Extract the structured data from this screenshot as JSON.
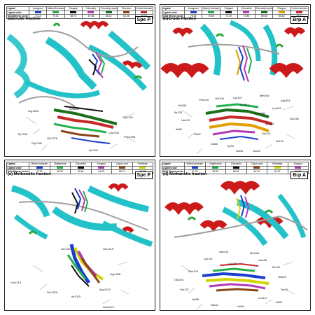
{
  "colors": {
    "helix": "#cc1a1a",
    "sheet": "#23c2c9",
    "coil": "#9e9e9e",
    "turn": "#2aa83a",
    "methyl_linoleate": "#1a3fcc",
    "methyl_linoleate_d": "#1a3fcc",
    "zingiberene": "#22b14c",
    "citronellol": "#111111",
    "shogaol": "#b23ab2",
    "citronellyl_acetate": "#1b6e1b",
    "capric_acid": "#8b4513",
    "cedrol": "#c62828",
    "cedrol_formate": "#e0a000",
    "palmitate": "#d4d400"
  },
  "panels": [
    {
      "key": "a",
      "title": "(a)Crude fraction",
      "tag": "Spe P",
      "legend": {
        "ligand_label": "Ligand",
        "color_label": "Ligand color",
        "score_label": "Gold fitness score",
        "ligands": [
          {
            "name": "Linagenol",
            "color": "#1a3fcc",
            "score": "73.13"
          },
          {
            "name": "Methyl linoleate",
            "color": "#22b14c",
            "score": "75.01"
          },
          {
            "name": "Shogaol",
            "color": "#111111",
            "score": "68.73"
          },
          {
            "name": "Citronellyl",
            "color": "#b23ab2",
            "score": "67.08"
          },
          {
            "name": "Citronellyl acetate",
            "color": "#1b6e1b",
            "score": "66.12"
          },
          {
            "name": "Elemicin",
            "color": "#8b4513",
            "score": "63.46"
          },
          {
            "name": "Cedrol formate",
            "color": "#c62828",
            "score": "60.03"
          }
        ]
      },
      "residues": [
        "Arg1263",
        "Lys1267",
        "Gly1216",
        "Tyr1314",
        "Gln1278",
        "Lys1306",
        "Phe1308",
        "Gly1326",
        "Ile1190"
      ]
    },
    {
      "key": "b",
      "title": "(b)Crude fraction",
      "tag": "Brp A",
      "legend": {
        "ligand_label": "Ligand",
        "color_label": "Ligand color",
        "score_label": "Gold fitness score",
        "ligands": [
          {
            "name": "Linagenol",
            "color": "#1a3fcc",
            "score": "75.46"
          },
          {
            "name": "Methyl linoleate",
            "color": "#22b14c",
            "score": "74.58"
          },
          {
            "name": "Shogaol",
            "color": "#111111",
            "score": "71.29"
          },
          {
            "name": "Citronellol",
            "color": "#b23ab2",
            "score": "70.80"
          },
          {
            "name": "Citronellyl acetate",
            "color": "#1b6e1b",
            "score": "69.65"
          },
          {
            "name": "Shogaol",
            "color": "#e0a000",
            "score": "68.62"
          },
          {
            "name": "Cedrol formate",
            "color": "#c62828",
            "score": "65.41"
          }
        ]
      },
      "residues": [
        "Phe103",
        "Gln106",
        "Lys110",
        "Met204",
        "Asp201",
        "Val108",
        "Leu117",
        "Lys113",
        "Ile125",
        "Asn98",
        "Gly136",
        "Val120",
        "Ser127",
        "Ile88",
        "Val37",
        "Gly114",
        "Ile129",
        "Val85",
        "Tyr93",
        "Val34",
        "Glu32"
      ]
    },
    {
      "key": "c",
      "title": "(c) Methanolic fraction",
      "tag": "Spe P",
      "legend": {
        "ligand_label": "Ligand",
        "color_label": "Ligand color",
        "score_label": "Gold fitness score",
        "ligands": [
          {
            "name": "Methyl linoleate",
            "color": "#1a3fcc",
            "score": "70.36"
          },
          {
            "name": "Zingiberene",
            "color": "#22b14c",
            "score": "68.29"
          },
          {
            "name": "Citronellol",
            "color": "#111111",
            "score": "62.61"
          },
          {
            "name": "Shogaol",
            "color": "#b23ab2",
            "score": "64.29"
          },
          {
            "name": "Capric acid",
            "color": "#8b4513",
            "score": "59.79"
          },
          {
            "name": "Palmitate",
            "color": "#d4d400",
            "score": "60.38"
          }
        ]
      },
      "residues": [
        "Ser1321",
        "Gln1219",
        "Glu1313",
        "Arg1308",
        "Ser1326",
        "Asp1310",
        "Ile1315",
        "Asn1273"
      ]
    },
    {
      "key": "d",
      "title": "(d) Methanolic fraction",
      "tag": "Brp A",
      "legend": {
        "ligand_label": "Ligand",
        "color_label": "Ligand color",
        "score_label": "Gold fitness score",
        "ligands": [
          {
            "name": "Methyl linoleate",
            "color": "#1a3fcc",
            "score": "71.32"
          },
          {
            "name": "Zingiberene",
            "color": "#22b14c",
            "score": "69.29"
          },
          {
            "name": "Citronellol",
            "color": "#111111",
            "score": "65.51"
          },
          {
            "name": "Capric acid",
            "color": "#8b4513",
            "score": "64.34"
          },
          {
            "name": "Palmitate",
            "color": "#d4d400",
            "score": "63.67"
          },
          {
            "name": "Shogaol",
            "color": "#b23ab2",
            "score": "60.58"
          }
        ]
      },
      "residues": [
        "Asp116",
        "Met204",
        "Lys113",
        "Val108",
        "Ile129",
        "Gln106",
        "Phe103",
        "Val120",
        "Gly136",
        "Tyr93",
        "Ser127",
        "Leu117",
        "Val85",
        "Ile88",
        "Glu32",
        "Val34"
      ]
    }
  ]
}
